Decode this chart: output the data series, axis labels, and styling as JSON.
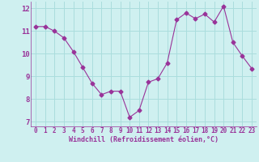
{
  "x": [
    0,
    1,
    2,
    3,
    4,
    5,
    6,
    7,
    8,
    9,
    10,
    11,
    12,
    13,
    14,
    15,
    16,
    17,
    18,
    19,
    20,
    21,
    22,
    23
  ],
  "y": [
    11.2,
    11.2,
    11.0,
    10.7,
    10.1,
    9.4,
    8.7,
    8.2,
    8.35,
    8.35,
    7.2,
    7.5,
    8.75,
    8.9,
    9.6,
    11.5,
    11.8,
    11.55,
    11.75,
    11.4,
    12.1,
    10.5,
    9.9,
    9.35
  ],
  "line_color": "#993399",
  "marker": "D",
  "marker_size": 2.5,
  "background_color": "#cff0f0",
  "grid_color": "#aadddd",
  "xlabel": "Windchill (Refroidissement éolien,°C)",
  "xlabel_color": "#993399",
  "tick_color": "#993399",
  "label_color": "#993399",
  "ylim": [
    6.8,
    12.3
  ],
  "xlim": [
    -0.5,
    23.5
  ],
  "yticks": [
    7,
    8,
    9,
    10,
    11,
    12
  ],
  "xticks": [
    0,
    1,
    2,
    3,
    4,
    5,
    6,
    7,
    8,
    9,
    10,
    11,
    12,
    13,
    14,
    15,
    16,
    17,
    18,
    19,
    20,
    21,
    22,
    23
  ]
}
